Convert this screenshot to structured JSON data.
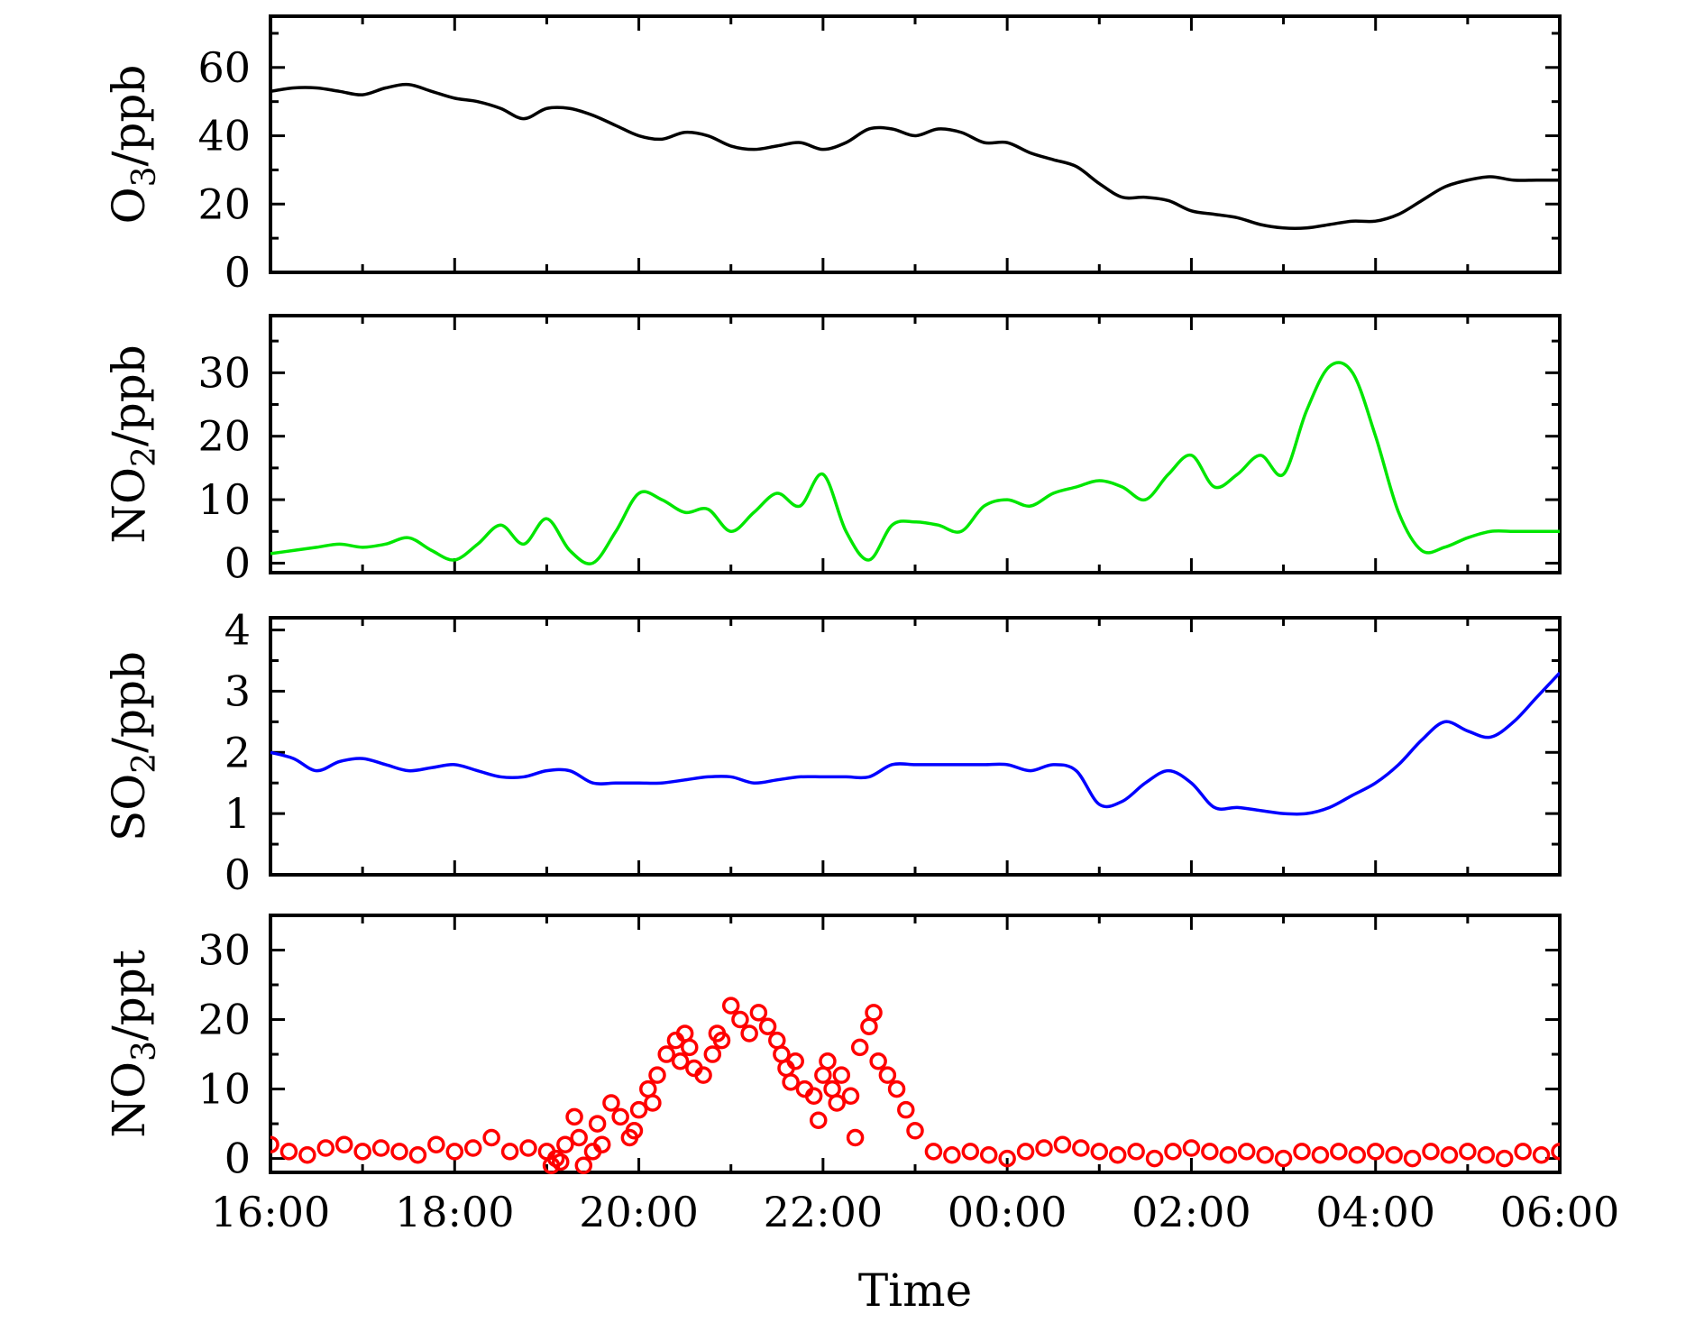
{
  "figure": {
    "xlabel": "Time",
    "xticks": [
      "16:00",
      "18:00",
      "20:00",
      "22:00",
      "00:00",
      "02:00",
      "04:00",
      "06:00"
    ]
  },
  "chart_data": [
    {
      "type": "line",
      "ylabel": "O3/ppb",
      "ylim": [
        0,
        75
      ],
      "yticks": [
        0,
        20,
        40,
        60
      ],
      "grid": false,
      "color": "#000000",
      "series": [
        {
          "x": [
            0,
            0.25,
            0.5,
            0.75,
            1,
            1.25,
            1.5,
            1.75,
            2,
            2.25,
            2.5,
            2.75,
            3,
            3.25,
            3.5,
            3.75,
            4,
            4.25,
            4.5,
            4.75,
            5,
            5.25,
            5.5,
            5.75,
            6,
            6.25,
            6.5,
            6.75,
            7,
            7.25,
            7.5,
            7.75,
            8,
            8.25,
            8.5,
            8.75,
            9,
            9.25,
            9.5,
            9.75,
            10,
            10.25,
            10.5,
            10.75,
            11,
            11.25,
            11.5,
            11.75,
            12,
            12.25,
            12.5,
            12.75,
            13,
            13.25,
            13.5,
            13.75,
            14
          ],
          "values": [
            53,
            54,
            54,
            53,
            52,
            54,
            55,
            53,
            51,
            50,
            48,
            45,
            48,
            48,
            46,
            43,
            40,
            39,
            41,
            40,
            37,
            36,
            37,
            38,
            36,
            38,
            42,
            42,
            40,
            42,
            41,
            38,
            38,
            35,
            33,
            31,
            26,
            22,
            22,
            21,
            18,
            17,
            16,
            14,
            13,
            13,
            14,
            15,
            15,
            17,
            21,
            25,
            27,
            28,
            27,
            27,
            27
          ]
        }
      ]
    },
    {
      "type": "line",
      "ylabel": "NO2/ppb",
      "ylim": [
        -1.5,
        39
      ],
      "yticks": [
        0,
        10,
        20,
        30
      ],
      "grid": false,
      "color": "#00e600",
      "series": [
        {
          "x": [
            0,
            0.25,
            0.5,
            0.75,
            1,
            1.25,
            1.5,
            1.75,
            2,
            2.25,
            2.5,
            2.75,
            3,
            3.25,
            3.5,
            3.75,
            4,
            4.25,
            4.5,
            4.75,
            5,
            5.25,
            5.5,
            5.75,
            6,
            6.25,
            6.5,
            6.75,
            7,
            7.25,
            7.5,
            7.75,
            8,
            8.25,
            8.5,
            8.75,
            9,
            9.25,
            9.5,
            9.75,
            10,
            10.25,
            10.5,
            10.75,
            11,
            11.25,
            11.5,
            11.75,
            12,
            12.25,
            12.5,
            12.75,
            13,
            13.25,
            13.5,
            13.75,
            14
          ],
          "values": [
            1.5,
            2,
            2.5,
            3,
            2.5,
            3,
            4,
            2,
            0.5,
            3,
            6,
            3,
            7,
            2,
            0,
            5,
            11,
            10,
            8,
            8.5,
            5,
            8,
            11,
            9,
            14,
            5,
            0.5,
            6,
            6.5,
            6,
            5,
            9,
            10,
            9,
            11,
            12,
            13,
            12,
            10,
            14,
            17,
            12,
            14,
            17,
            14,
            24,
            31,
            30,
            20,
            8,
            2,
            2.5,
            4,
            5,
            5,
            5,
            5
          ]
        }
      ]
    },
    {
      "type": "line",
      "ylabel": "SO2/ppb",
      "ylim": [
        0,
        4.2
      ],
      "yticks": [
        0,
        1,
        2,
        3,
        4
      ],
      "grid": false,
      "color": "#0000ff",
      "series": [
        {
          "x": [
            0,
            0.25,
            0.5,
            0.75,
            1,
            1.25,
            1.5,
            1.75,
            2,
            2.25,
            2.5,
            2.75,
            3,
            3.25,
            3.5,
            3.75,
            4,
            4.25,
            4.5,
            4.75,
            5,
            5.25,
            5.5,
            5.75,
            6,
            6.25,
            6.5,
            6.75,
            7,
            7.25,
            7.5,
            7.75,
            8,
            8.25,
            8.5,
            8.75,
            9,
            9.25,
            9.5,
            9.75,
            10,
            10.25,
            10.5,
            10.75,
            11,
            11.25,
            11.5,
            11.75,
            12,
            12.25,
            12.5,
            12.75,
            13,
            13.25,
            13.5,
            13.75,
            14
          ],
          "values": [
            2,
            1.9,
            1.7,
            1.85,
            1.9,
            1.8,
            1.7,
            1.75,
            1.8,
            1.7,
            1.6,
            1.6,
            1.7,
            1.7,
            1.5,
            1.5,
            1.5,
            1.5,
            1.55,
            1.6,
            1.6,
            1.5,
            1.55,
            1.6,
            1.6,
            1.6,
            1.6,
            1.8,
            1.8,
            1.8,
            1.8,
            1.8,
            1.8,
            1.7,
            1.8,
            1.7,
            1.15,
            1.2,
            1.5,
            1.7,
            1.5,
            1.1,
            1.1,
            1.05,
            1,
            1,
            1.1,
            1.3,
            1.5,
            1.8,
            2.2,
            2.5,
            2.35,
            2.25,
            2.5,
            2.9,
            3.3
          ]
        }
      ]
    },
    {
      "type": "scatter",
      "ylabel": "NO3/ppt",
      "ylim": [
        -2,
        35
      ],
      "yticks": [
        0,
        10,
        20,
        30
      ],
      "grid": false,
      "color": "#ff0000",
      "marker": "open-circle",
      "series": [
        {
          "x": [
            0,
            0.2,
            0.4,
            0.6,
            0.8,
            1,
            1.2,
            1.4,
            1.6,
            1.8,
            2,
            2.2,
            2.4,
            2.6,
            2.8,
            3,
            3.05,
            3.1,
            3.15,
            3.2,
            3.3,
            3.35,
            3.4,
            3.5,
            3.55,
            3.6,
            3.7,
            3.8,
            3.9,
            3.95,
            4,
            4.1,
            4.15,
            4.2,
            4.3,
            4.4,
            4.45,
            4.5,
            4.55,
            4.6,
            4.7,
            4.8,
            4.85,
            4.9,
            5,
            5.1,
            5.2,
            5.3,
            5.4,
            5.5,
            5.55,
            5.6,
            5.65,
            5.7,
            5.8,
            5.9,
            5.95,
            6,
            6.05,
            6.1,
            6.15,
            6.2,
            6.3,
            6.35,
            6.4,
            6.5,
            6.55,
            6.6,
            6.7,
            6.8,
            6.9,
            7,
            7.2,
            7.4,
            7.6,
            7.8,
            8,
            8.2,
            8.4,
            8.6,
            8.8,
            9,
            9.2,
            9.4,
            9.6,
            9.8,
            10,
            10.2,
            10.4,
            10.6,
            10.8,
            11,
            11.2,
            11.4,
            11.6,
            11.8,
            12,
            12.2,
            12.4,
            12.6,
            12.8,
            13,
            13.2,
            13.4,
            13.6,
            13.8,
            14
          ],
          "values": [
            2,
            1,
            0.5,
            1.5,
            2,
            1,
            1.5,
            1,
            0.5,
            2,
            1,
            1.5,
            3,
            1,
            1.5,
            1,
            -1,
            0,
            -0.5,
            2,
            6,
            3,
            -1,
            1,
            5,
            2,
            8,
            6,
            3,
            4,
            7,
            10,
            8,
            12,
            15,
            17,
            14,
            18,
            16,
            13,
            12,
            15,
            18,
            17,
            22,
            20,
            18,
            21,
            19,
            17,
            15,
            13,
            11,
            14,
            10,
            9,
            5.5,
            12,
            14,
            10,
            8,
            12,
            9,
            3,
            16,
            19,
            21,
            14,
            12,
            10,
            7,
            4,
            1,
            0.5,
            1,
            0.5,
            0,
            1,
            1.5,
            2,
            1.5,
            1,
            0.5,
            1,
            0,
            1,
            1.5,
            1,
            0.5,
            1,
            0.5,
            0,
            1,
            0.5,
            1,
            0.5,
            1,
            0.5,
            0,
            1,
            0.5,
            1,
            0.5,
            0,
            1,
            0.5,
            1
          ]
        }
      ]
    }
  ]
}
